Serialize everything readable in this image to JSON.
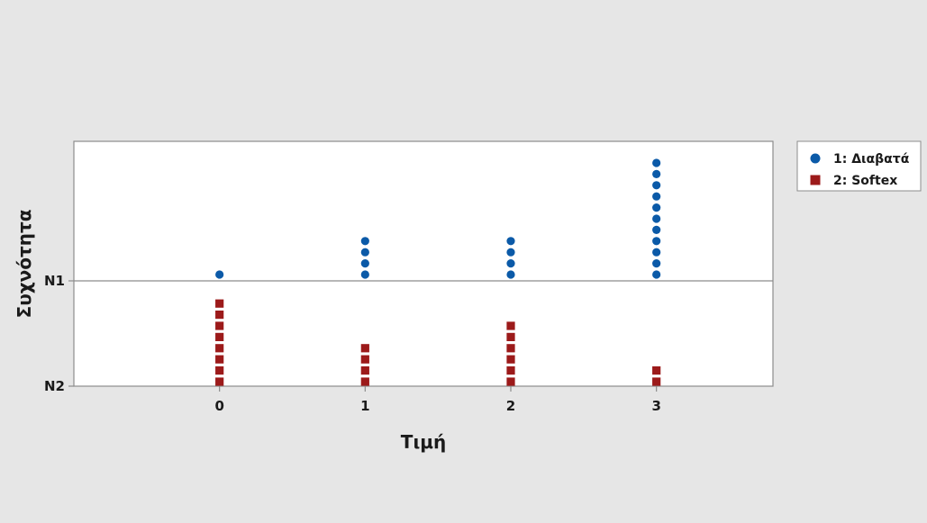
{
  "chart_data": {
    "type": "scatter",
    "subtype": "dotplot",
    "title": "",
    "xlabel": "Τιμή",
    "ylabel": "Συχνότητα",
    "x_ticks": [
      "0",
      "1",
      "2",
      "3"
    ],
    "row_labels": [
      "N1",
      "N2"
    ],
    "xlim": [
      -1,
      3.8
    ],
    "legend_position": "top-right",
    "series": [
      {
        "name": "1: Διαβατά",
        "row": "N1",
        "marker": "circle",
        "color": "#0b5aa8",
        "x": [
          0,
          1,
          2,
          3
        ],
        "counts": [
          1,
          4,
          4,
          11
        ]
      },
      {
        "name": "2: Softex",
        "row": "N2",
        "marker": "square",
        "color": "#9c1a1a",
        "x": [
          0,
          1,
          2,
          3
        ],
        "counts": [
          8,
          4,
          6,
          2
        ]
      }
    ]
  },
  "colors": {
    "background": "#e6e6e6",
    "plot_background": "#ffffff",
    "frame": "#8c8c8c",
    "divider": "#8c8c8c"
  }
}
